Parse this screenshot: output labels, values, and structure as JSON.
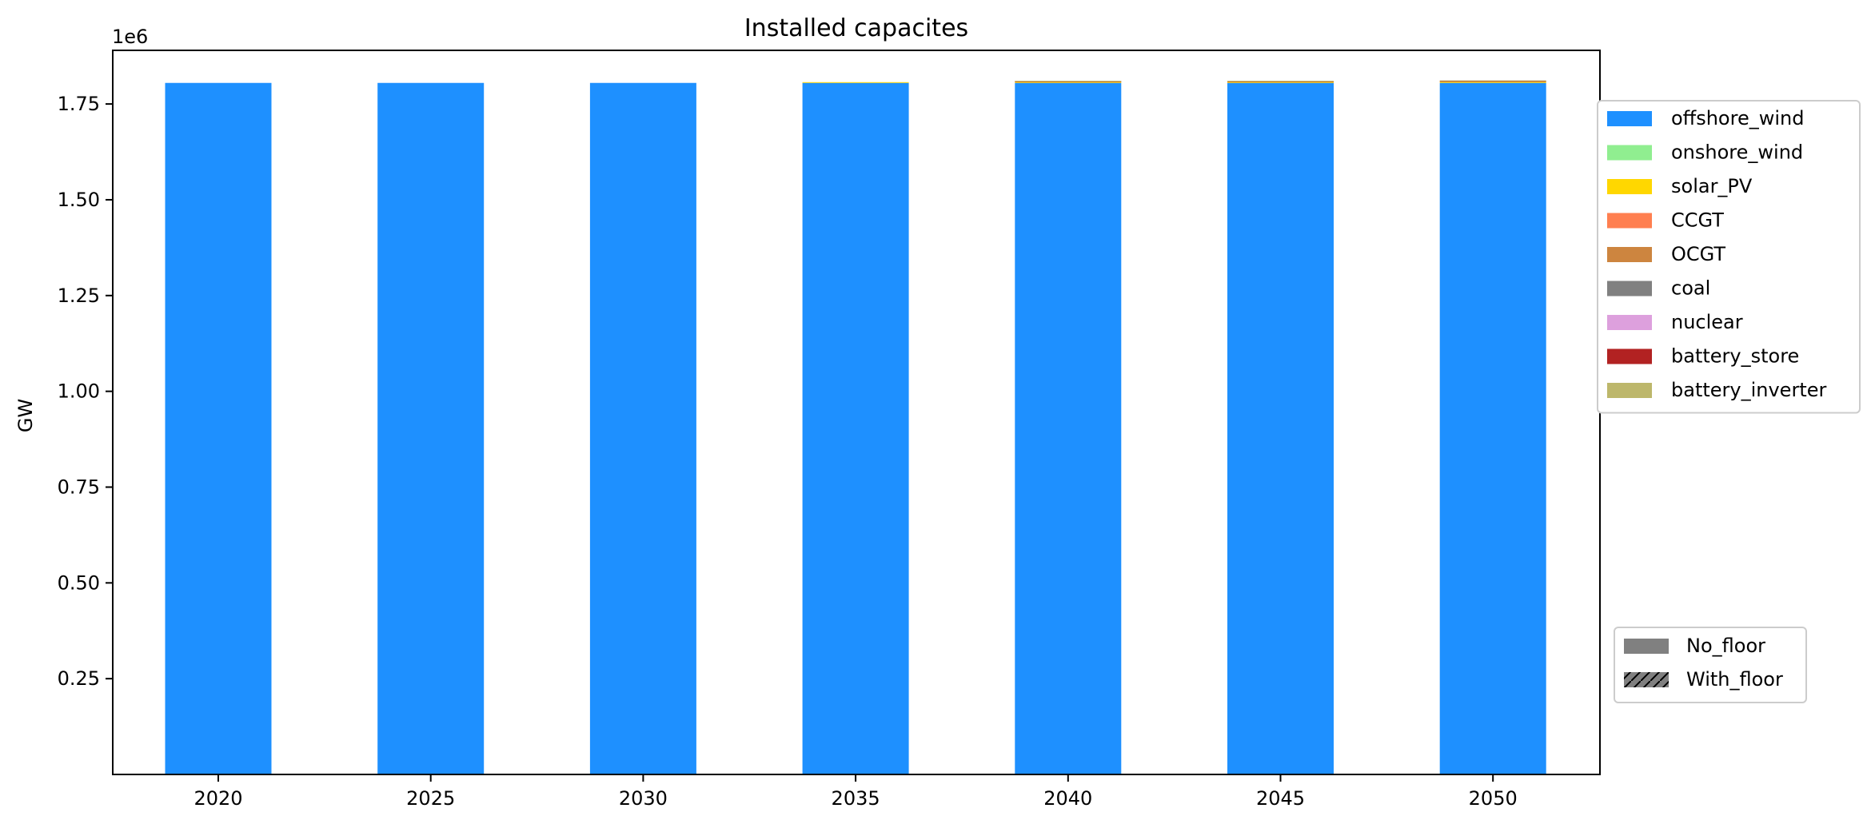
{
  "chart_data": {
    "type": "bar",
    "title": "Installed capacites",
    "xlabel": "",
    "ylabel": "GW",
    "y_multiplier": "1e6",
    "categories": [
      "2020",
      "2025",
      "2030",
      "2035",
      "2040",
      "2045",
      "2050"
    ],
    "ylim": [
      0,
      1890000
    ],
    "yticks": [
      250000,
      500000,
      750000,
      1000000,
      1250000,
      1500000,
      1750000
    ],
    "ytick_labels": [
      "0.25",
      "0.50",
      "0.75",
      "1.00",
      "1.25",
      "1.50",
      "1.75"
    ],
    "grid": false,
    "series": [
      {
        "name": "offshore_wind",
        "color": "#1E90FF",
        "scenario": "No_floor",
        "values": [
          1805000,
          1805000,
          1805000,
          1805000,
          1805000,
          1805000,
          1805000
        ]
      },
      {
        "name": "onshore_wind",
        "color": "#90EE90",
        "scenario": "No_floor",
        "values": [
          0,
          0,
          0,
          0,
          0,
          0,
          0
        ]
      },
      {
        "name": "solar_PV",
        "color": "#FFD700",
        "scenario": "No_floor",
        "values": [
          0,
          0,
          0,
          2000,
          3000,
          3000,
          3000
        ]
      },
      {
        "name": "CCGT",
        "color": "#FF7F50",
        "scenario": "No_floor",
        "values": [
          0,
          0,
          0,
          0,
          0,
          0,
          0
        ]
      },
      {
        "name": "OCGT",
        "color": "#CD853F",
        "scenario": "No_floor",
        "values": [
          0,
          0,
          0,
          0,
          0,
          0,
          0
        ]
      },
      {
        "name": "coal",
        "color": "#808080",
        "scenario": "No_floor",
        "values": [
          0,
          0,
          0,
          0,
          0,
          0,
          0
        ]
      },
      {
        "name": "nuclear",
        "color": "#DDA0DD",
        "scenario": "No_floor",
        "values": [
          0,
          0,
          0,
          0,
          0,
          0,
          0
        ]
      },
      {
        "name": "battery_store",
        "color": "#B22222",
        "scenario": "No_floor",
        "values": [
          0,
          0,
          0,
          0,
          1500,
          1500,
          2000
        ]
      },
      {
        "name": "battery_inverter",
        "color": "#BDB76B",
        "scenario": "No_floor",
        "values": [
          0,
          0,
          0,
          0,
          1000,
          1000,
          1500
        ]
      }
    ],
    "legend": {
      "technologies": [
        "offshore_wind",
        "onshore_wind",
        "solar_PV",
        "CCGT",
        "OCGT",
        "coal",
        "nuclear",
        "battery_store",
        "battery_inverter"
      ],
      "scenarios": [
        "No_floor",
        "With_floor"
      ],
      "technology_placement": "right-top",
      "scenario_placement": "right-bottom"
    }
  }
}
